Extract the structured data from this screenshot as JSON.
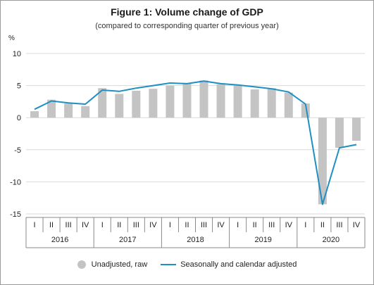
{
  "chart_data": {
    "type": "bar",
    "title": "Figure 1: Volume change of GDP",
    "subtitle": "(compared to corresponding quarter of previous year)",
    "ylabel": "%",
    "ylim": [
      -15,
      10
    ],
    "yticks": [
      10,
      5,
      0,
      -5,
      -10,
      -15
    ],
    "grid": true,
    "quarters": [
      "I",
      "II",
      "III",
      "IV",
      "I",
      "II",
      "III",
      "IV",
      "I",
      "II",
      "III",
      "IV",
      "I",
      "II",
      "III",
      "IV",
      "I",
      "II",
      "III",
      "IV"
    ],
    "years": [
      "2016",
      "2017",
      "2018",
      "2019",
      "2020"
    ],
    "series": [
      {
        "name": "Unadjusted, raw",
        "type": "bar",
        "color": "#c4c4c4",
        "values": [
          1.0,
          2.8,
          2.2,
          1.8,
          4.6,
          3.7,
          4.2,
          4.5,
          5.0,
          5.3,
          5.8,
          5.2,
          5.1,
          4.4,
          4.6,
          3.9,
          2.2,
          -13.5,
          -4.7,
          -3.6
        ]
      },
      {
        "name": "Seasonally and calendar adjusted",
        "type": "line",
        "color": "#1f8fc1",
        "values": [
          1.3,
          2.6,
          2.3,
          2.1,
          4.3,
          4.1,
          4.6,
          5.0,
          5.4,
          5.3,
          5.7,
          5.3,
          5.1,
          4.8,
          4.5,
          4.0,
          2.1,
          -13.5,
          -4.7,
          -4.2
        ]
      }
    ],
    "legend_position": "bottom"
  }
}
